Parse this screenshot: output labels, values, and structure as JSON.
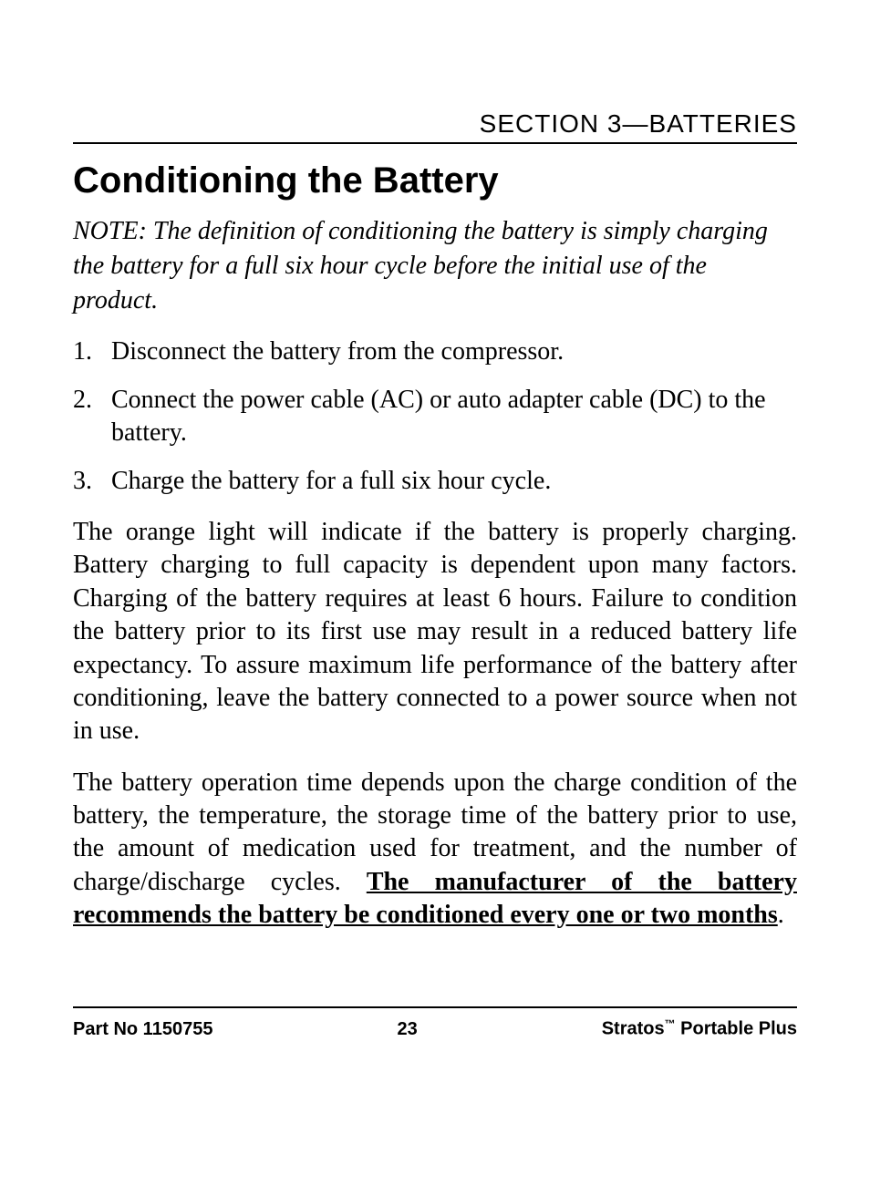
{
  "header": {
    "section_label": "SECTION 3—BATTERIES"
  },
  "title": "Conditioning the Battery",
  "note": "NOTE: The definition of conditioning the battery is simply charging the battery for a full six hour cycle before the initial use of the product.",
  "steps": [
    {
      "num": "1.",
      "text": "Disconnect the battery from the compressor."
    },
    {
      "num": "2.",
      "text": "Connect the power cable (AC) or auto adapter cable (DC) to the battery."
    },
    {
      "num": "3.",
      "text": "Charge the battery for a full six hour cycle."
    }
  ],
  "paragraph1": "The orange light will indicate if the battery is properly charging. Battery charging to full capacity is dependent upon many factors. Charging of the battery requires at least 6 hours. Failure to condition the battery prior to its first use may result in a reduced battery life expectancy. To assure maximum life performance of the battery after conditioning, leave the battery connected to a power source when not in use.",
  "paragraph2_pre": "The battery operation time depends upon the charge condition of the battery, the temperature, the storage time of the battery prior to use, the amount of medication used for treatment, and the number of charge/discharge cycles. ",
  "paragraph2_emph": "The manufacturer of the battery recommends the battery be conditioned every one or two months",
  "paragraph2_post": ".",
  "footer": {
    "part_no": "Part No 1150755",
    "page": "23",
    "product_pre": "Stratos",
    "product_tm": "™",
    "product_post": " Portable Plus"
  }
}
